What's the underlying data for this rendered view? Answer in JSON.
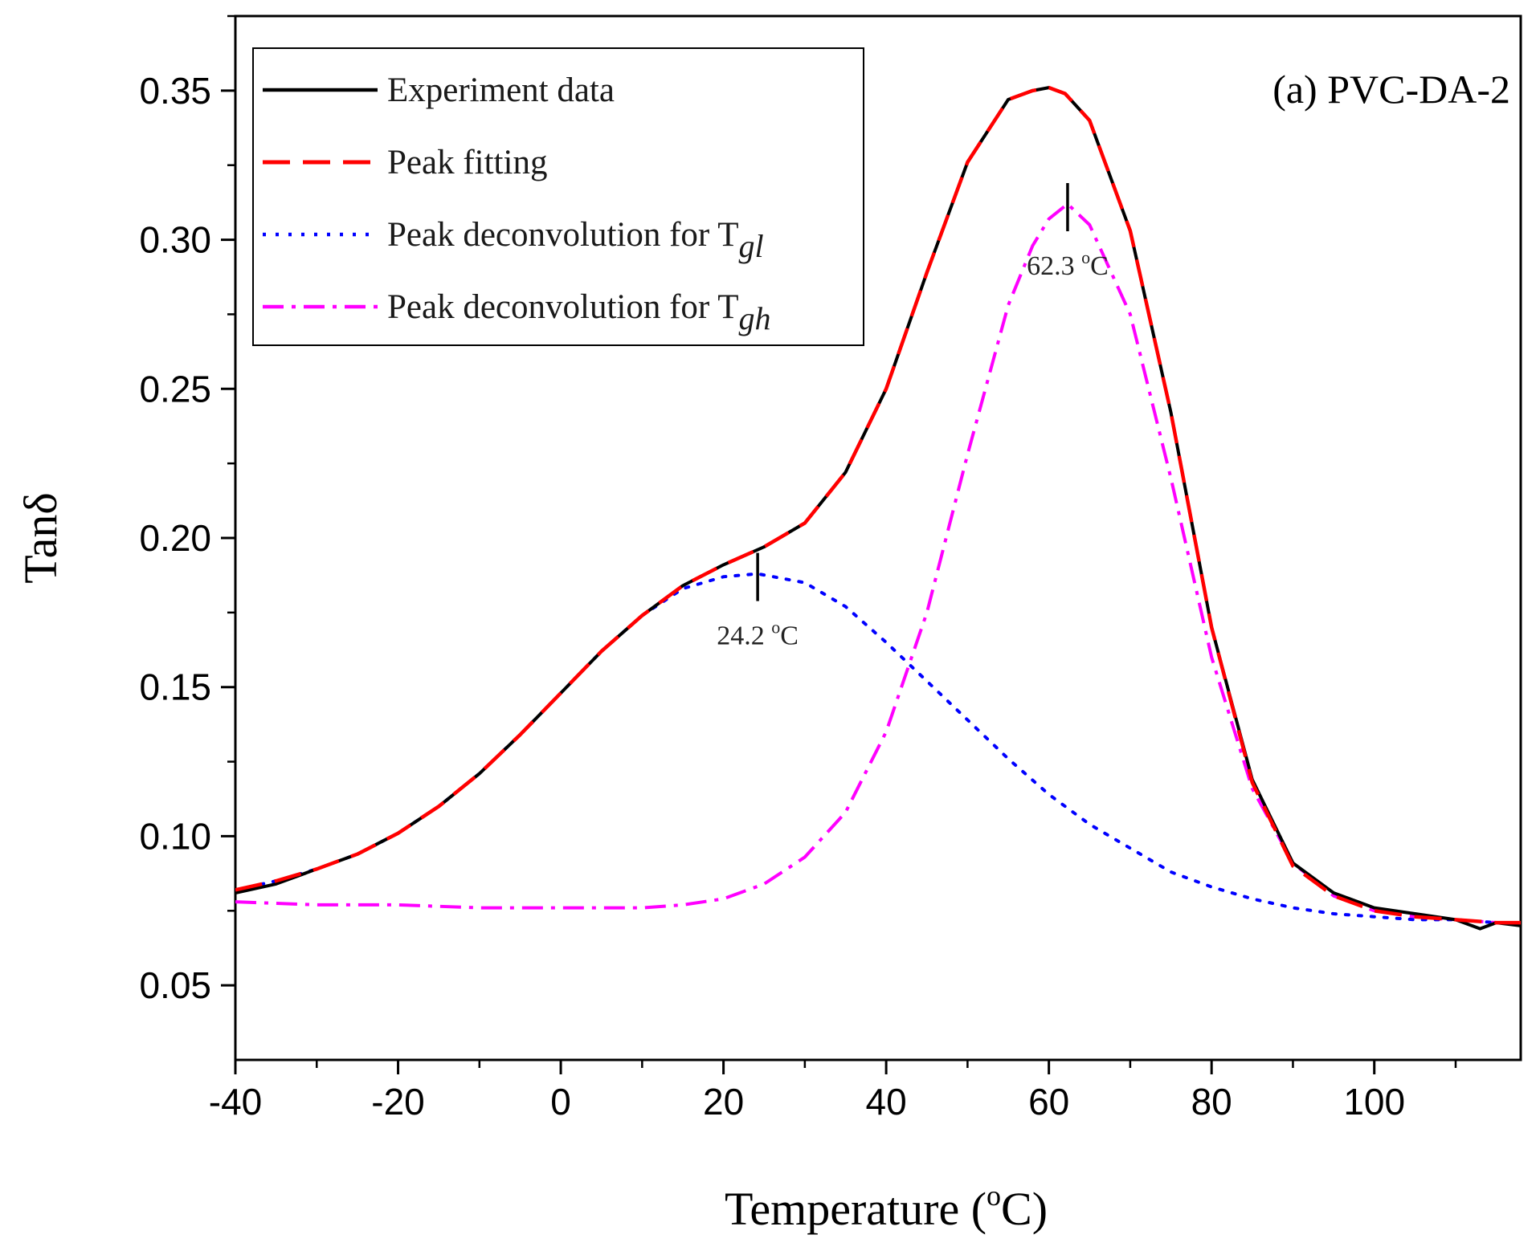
{
  "chart_data": {
    "type": "line",
    "title": "(a) PVC-DA-2",
    "xlabel": {
      "text": "Temperature (",
      "sup": "o",
      "suffix": "C)"
    },
    "ylabel": "Tanδ",
    "xlim": [
      -40,
      118
    ],
    "ylim": [
      0.025,
      0.375
    ],
    "x_ticks": [
      -40,
      -20,
      0,
      20,
      40,
      60,
      80,
      100
    ],
    "x_tick_labels": [
      "-40",
      "-20",
      "0",
      "20",
      "40",
      "60",
      "80",
      "100"
    ],
    "y_ticks": [
      0.05,
      0.1,
      0.15,
      0.2,
      0.25,
      0.3,
      0.35
    ],
    "y_tick_labels": [
      "0.05",
      "0.10",
      "0.15",
      "0.20",
      "0.25",
      "0.30",
      "0.35"
    ],
    "grid": false,
    "legend_position": "top-left",
    "legend": [
      {
        "label": "Experiment data",
        "sub": "",
        "color": "#000000",
        "dash": "solid"
      },
      {
        "label": "Peak fitting",
        "sub": "",
        "color": "#ff0000",
        "dash": "dashed"
      },
      {
        "label": "Peak deconvolution for T",
        "sub": "gl",
        "color": "#0000ff",
        "dash": "dotted"
      },
      {
        "label": "Peak deconvolution for T",
        "sub": "gh",
        "color": "#ff00ff",
        "dash": "dashdot"
      }
    ],
    "series": [
      {
        "name": "Experiment data",
        "color": "#000000",
        "dash": "solid",
        "x": [
          -40,
          -35,
          -30,
          -25,
          -20,
          -15,
          -10,
          -5,
          0,
          5,
          10,
          15,
          20,
          25,
          30,
          35,
          40,
          45,
          50,
          55,
          58,
          60,
          62,
          65,
          70,
          75,
          80,
          85,
          90,
          95,
          100,
          105,
          110,
          113,
          115,
          118
        ],
        "y": [
          0.081,
          0.084,
          0.089,
          0.094,
          0.101,
          0.11,
          0.121,
          0.134,
          0.148,
          0.162,
          0.174,
          0.184,
          0.191,
          0.197,
          0.205,
          0.222,
          0.25,
          0.289,
          0.326,
          0.347,
          0.35,
          0.351,
          0.349,
          0.34,
          0.303,
          0.242,
          0.17,
          0.119,
          0.091,
          0.081,
          0.076,
          0.074,
          0.072,
          0.069,
          0.071,
          0.07
        ]
      },
      {
        "name": "Peak fitting",
        "color": "#ff0000",
        "dash": "dashed",
        "x": [
          -40,
          -35,
          -30,
          -25,
          -20,
          -15,
          -10,
          -5,
          0,
          5,
          10,
          15,
          20,
          25,
          30,
          35,
          40,
          45,
          50,
          55,
          58,
          60,
          62,
          65,
          70,
          75,
          80,
          85,
          90,
          95,
          100,
          105,
          110,
          115,
          118
        ],
        "y": [
          0.082,
          0.085,
          0.089,
          0.094,
          0.101,
          0.11,
          0.121,
          0.134,
          0.148,
          0.162,
          0.174,
          0.184,
          0.191,
          0.197,
          0.205,
          0.222,
          0.25,
          0.289,
          0.326,
          0.347,
          0.35,
          0.351,
          0.349,
          0.34,
          0.303,
          0.242,
          0.17,
          0.118,
          0.09,
          0.08,
          0.075,
          0.073,
          0.072,
          0.071,
          0.071
        ]
      },
      {
        "name": "Peak deconvolution for Tgl",
        "color": "#0000ff",
        "dash": "dotted",
        "x": [
          -40,
          -35,
          -30,
          -25,
          -20,
          -15,
          -10,
          -5,
          0,
          5,
          10,
          15,
          20,
          24.2,
          30,
          35,
          40,
          45,
          50,
          55,
          60,
          65,
          70,
          75,
          80,
          85,
          90,
          95,
          100,
          105,
          110,
          115,
          118
        ],
        "y": [
          0.082,
          0.085,
          0.089,
          0.094,
          0.101,
          0.11,
          0.121,
          0.134,
          0.148,
          0.162,
          0.174,
          0.183,
          0.187,
          0.188,
          0.185,
          0.177,
          0.165,
          0.152,
          0.139,
          0.126,
          0.114,
          0.104,
          0.096,
          0.088,
          0.083,
          0.079,
          0.076,
          0.074,
          0.073,
          0.072,
          0.072,
          0.071,
          0.071
        ]
      },
      {
        "name": "Peak deconvolution for Tgh",
        "color": "#ff00ff",
        "dash": "dashdot",
        "x": [
          -40,
          -30,
          -20,
          -10,
          0,
          10,
          15,
          20,
          25,
          30,
          35,
          40,
          45,
          50,
          55,
          58,
          60,
          62.3,
          65,
          70,
          75,
          80,
          85,
          90,
          95,
          100,
          105,
          110,
          115,
          118
        ],
        "y": [
          0.078,
          0.077,
          0.077,
          0.076,
          0.076,
          0.076,
          0.077,
          0.079,
          0.084,
          0.093,
          0.108,
          0.135,
          0.175,
          0.228,
          0.278,
          0.298,
          0.307,
          0.312,
          0.305,
          0.275,
          0.22,
          0.16,
          0.116,
          0.091,
          0.08,
          0.075,
          0.073,
          0.072,
          0.071,
          0.071
        ]
      }
    ],
    "annotations": [
      {
        "text": "24.2 ",
        "sup": "o",
        "suffix": "C",
        "x": 24.2,
        "y": 0.188,
        "color": "#000000"
      },
      {
        "text": "62.3 ",
        "sup": "o",
        "suffix": "C",
        "x": 62.3,
        "y": 0.312,
        "color": "#000000"
      }
    ]
  }
}
